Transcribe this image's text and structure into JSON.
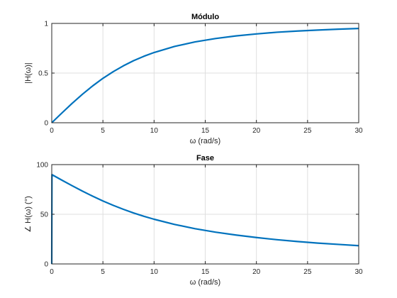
{
  "chart_data": [
    {
      "type": "line",
      "title": "Módulo",
      "xlabel": "ω (rad/s)",
      "ylabel": "|H(ω)|",
      "xlim": [
        0,
        30
      ],
      "ylim": [
        0,
        1
      ],
      "xticks": [
        "0",
        "5",
        "10",
        "15",
        "20",
        "25",
        "30"
      ],
      "yticks": [
        "0",
        "0.5",
        "1"
      ],
      "grid": true,
      "series": [
        {
          "x": [
            0,
            1,
            2,
            3,
            4,
            5,
            6,
            7,
            8,
            9,
            10,
            12,
            14,
            16,
            18,
            20,
            22,
            24,
            26,
            28,
            30
          ],
          "values": [
            0,
            0.099,
            0.196,
            0.287,
            0.371,
            0.447,
            0.514,
            0.573,
            0.625,
            0.669,
            0.707,
            0.768,
            0.814,
            0.848,
            0.874,
            0.894,
            0.911,
            0.923,
            0.933,
            0.942,
            0.949
          ]
        }
      ],
      "color": "#0072bd"
    },
    {
      "type": "line",
      "title": "Fase",
      "xlabel": "ω (rad/s)",
      "ylabel": "∠ H(ω) (°)",
      "xlim": [
        0,
        30
      ],
      "ylim": [
        0,
        100
      ],
      "xticks": [
        "0",
        "5",
        "10",
        "15",
        "20",
        "25",
        "30"
      ],
      "yticks": [
        "0",
        "50",
        "100"
      ],
      "grid": true,
      "series": [
        {
          "x": [
            0,
            0.02,
            1,
            2,
            3,
            4,
            5,
            6,
            7,
            8,
            9,
            10,
            12,
            14,
            16,
            18,
            20,
            22,
            24,
            26,
            28,
            30
          ],
          "values": [
            0,
            89.9,
            84.3,
            78.7,
            73.3,
            68.2,
            63.4,
            59.0,
            55.0,
            51.3,
            48.0,
            45.0,
            39.8,
            35.5,
            32.0,
            29.1,
            26.6,
            24.4,
            22.6,
            21.0,
            19.7,
            18.4
          ]
        }
      ],
      "color": "#0072bd"
    }
  ]
}
